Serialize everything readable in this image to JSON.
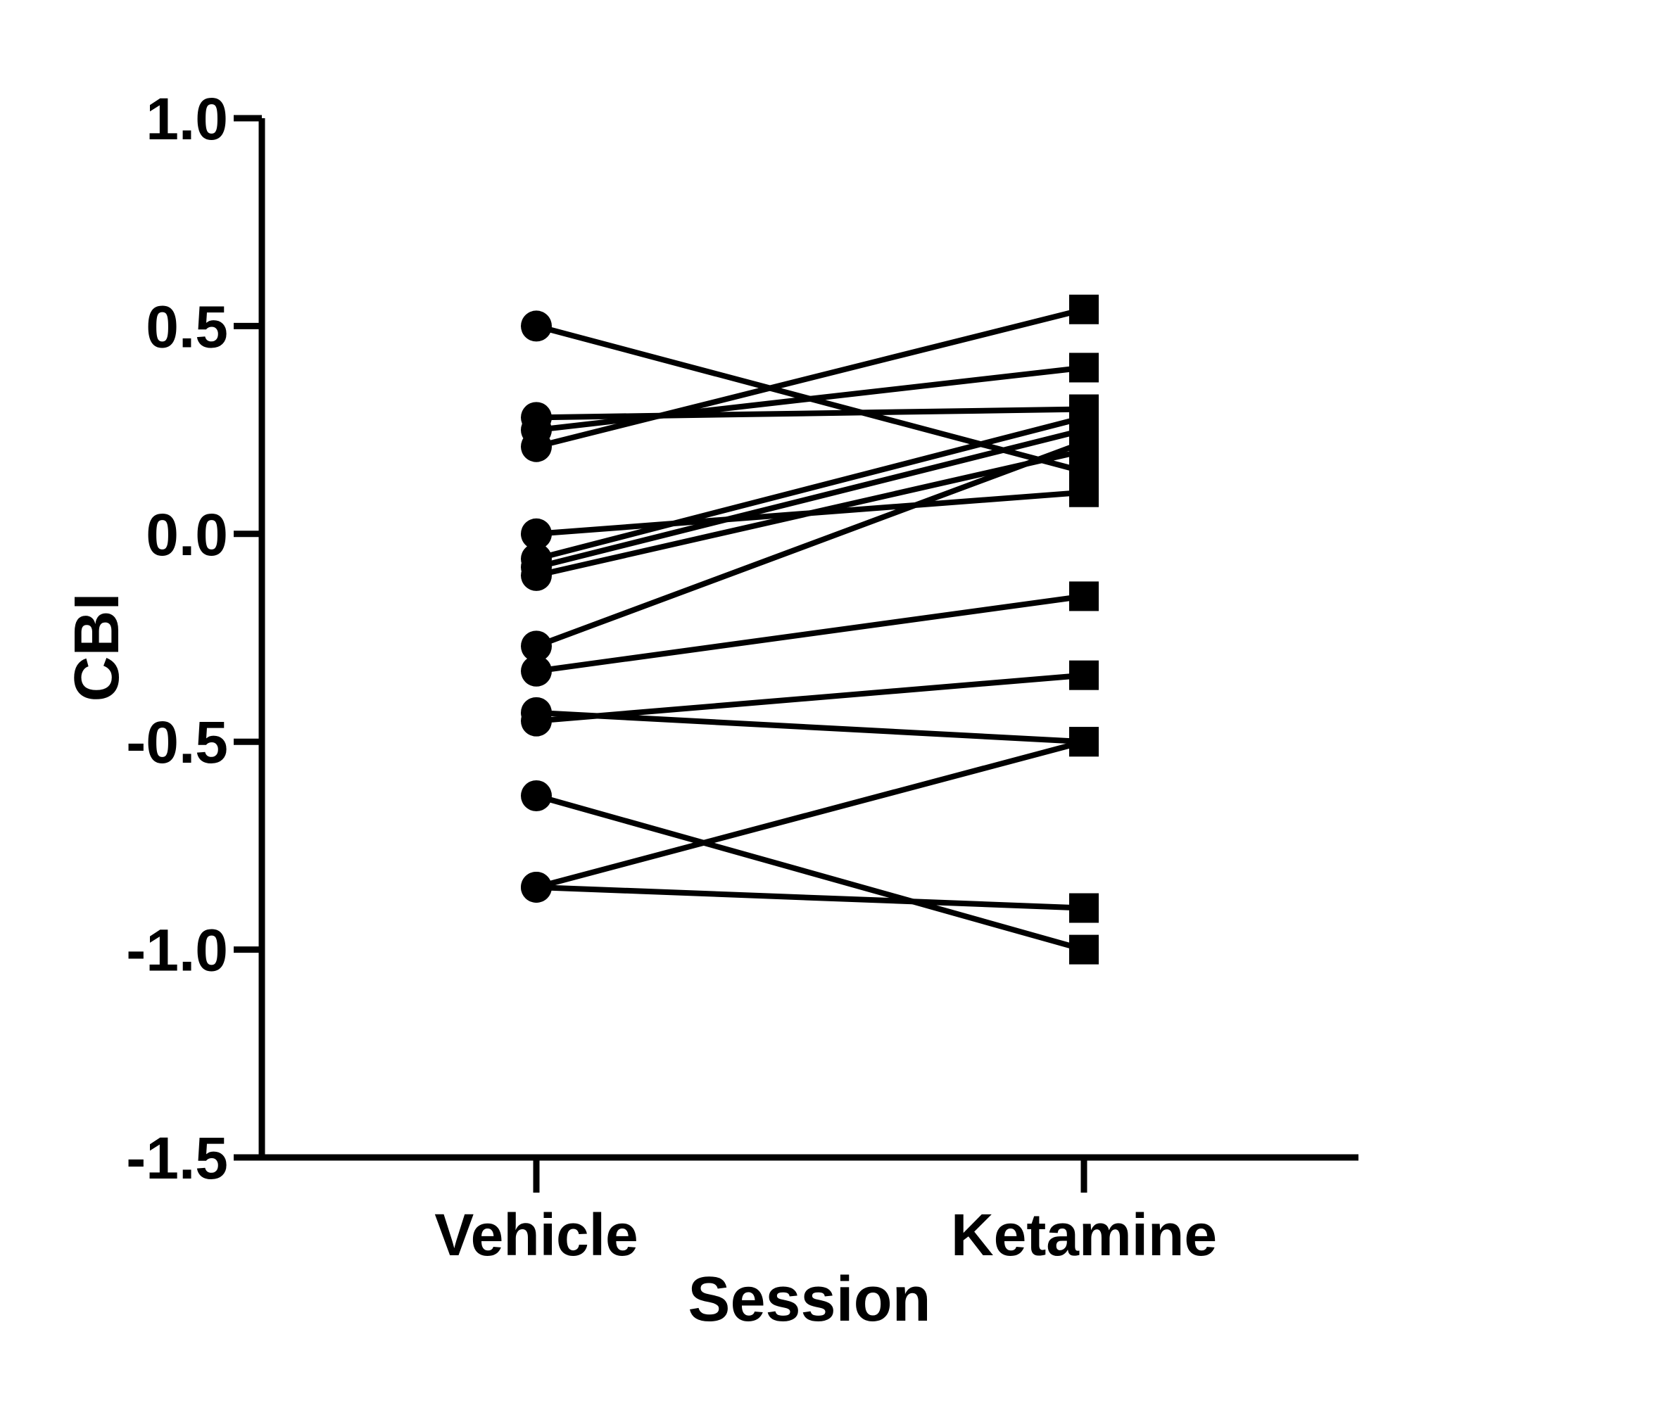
{
  "chart_data": {
    "type": "line",
    "xlabel": "Session",
    "ylabel": "CBI",
    "categories": [
      "Vehicle",
      "Ketamine"
    ],
    "ylim": [
      -1.5,
      1.0
    ],
    "yticks": [
      1.0,
      0.5,
      0.0,
      -0.5,
      -1.0,
      -1.5
    ],
    "ytick_labels": [
      "1.0",
      "0.5",
      "0.0",
      "-0.5",
      "-1.0",
      "-1.5"
    ],
    "grid": false,
    "legend": "none",
    "marker_vehicle": "circle",
    "marker_ketamine": "square",
    "color": "#000000",
    "pairs": [
      {
        "vehicle": 0.5,
        "ketamine": 0.15
      },
      {
        "vehicle": 0.28,
        "ketamine": 0.3
      },
      {
        "vehicle": 0.25,
        "ketamine": 0.4
      },
      {
        "vehicle": 0.21,
        "ketamine": 0.54
      },
      {
        "vehicle": 0.0,
        "ketamine": 0.1
      },
      {
        "vehicle": -0.06,
        "ketamine": 0.28
      },
      {
        "vehicle": -0.08,
        "ketamine": 0.25
      },
      {
        "vehicle": -0.1,
        "ketamine": 0.2
      },
      {
        "vehicle": -0.27,
        "ketamine": 0.22
      },
      {
        "vehicle": -0.33,
        "ketamine": -0.15
      },
      {
        "vehicle": -0.43,
        "ketamine": -0.5
      },
      {
        "vehicle": -0.45,
        "ketamine": -0.34
      },
      {
        "vehicle": -0.63,
        "ketamine": -1.0
      },
      {
        "vehicle": -0.85,
        "ketamine": -0.9
      },
      {
        "vehicle": -0.85,
        "ketamine": -0.5
      }
    ]
  }
}
